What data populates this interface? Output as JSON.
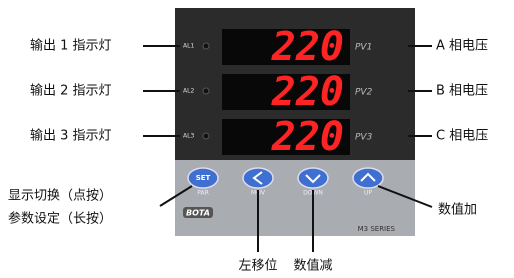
{
  "device": {
    "brand": "BOTA",
    "series": "M3 SERIES",
    "channels": [
      {
        "indicator": "AL1",
        "display": "220",
        "label": "PV1"
      },
      {
        "indicator": "AL2",
        "display": "220",
        "label": "PV2"
      },
      {
        "indicator": "AL3",
        "display": "220",
        "label": "PV3"
      }
    ],
    "buttons": [
      {
        "icon": "SET",
        "label": "PAR"
      },
      {
        "label": "MOV"
      },
      {
        "label": "DOWN"
      },
      {
        "label": "UP"
      }
    ]
  },
  "callouts": {
    "indicators": [
      "输出 1 指示灯",
      "输出 2 指示灯",
      "输出 3 指示灯"
    ],
    "phases": [
      "A 相电压",
      "B 相电压",
      "C 相电压"
    ],
    "set_button": [
      "显示切换（点按）",
      "参数设定（长按）"
    ],
    "mov": "左移位",
    "down": "数值减",
    "up": "数值加"
  }
}
